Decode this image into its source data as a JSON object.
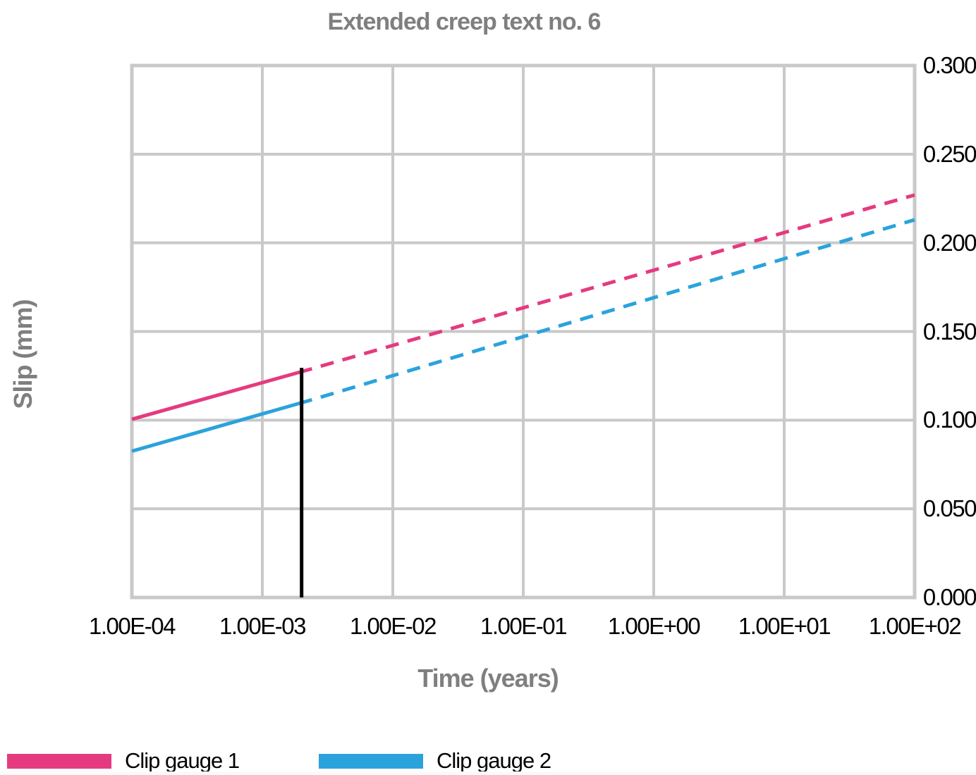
{
  "chart_data": {
    "type": "line",
    "title": "Extended creep text no. 6",
    "xlabel": "Time (years)",
    "ylabel": "Slip (mm)",
    "x_scale": "log",
    "xlim": [
      0.0001,
      100
    ],
    "ylim": [
      0,
      0.3
    ],
    "x_ticks": [
      "1.00E-04",
      "1.00E-03",
      "1.00E-02",
      "1.00E-01",
      "1.00E+00",
      "1.00E+01",
      "1.00E+02"
    ],
    "x_tick_values": [
      0.0001,
      0.001,
      0.01,
      0.1,
      1,
      10,
      100
    ],
    "y_ticks": [
      "0.300",
      "0.250",
      "0.200",
      "0.150",
      "0.100",
      "0.050",
      "0.000"
    ],
    "y_tick_values": [
      0.3,
      0.25,
      0.2,
      0.15,
      0.1,
      0.05,
      0
    ],
    "grid": true,
    "grid_color": "#c9c9c9",
    "label_color": "#7f7f7f",
    "tick_color": "#000000",
    "series": [
      {
        "name": "Clip gauge 1",
        "color": "#e53a80",
        "solid": {
          "x": [
            0.0001,
            0.0024
          ],
          "y": [
            0.1005,
            0.129
          ]
        },
        "dashed": {
          "x": [
            0.0024,
            100
          ],
          "y": [
            0.129,
            0.227
          ]
        }
      },
      {
        "name": "Clip gauge 2",
        "color": "#2aa3dc",
        "solid": {
          "x": [
            0.0001,
            0.0024
          ],
          "y": [
            0.0825,
            0.1115
          ]
        },
        "dashed": {
          "x": [
            0.0024,
            100
          ],
          "y": [
            0.1115,
            0.213
          ]
        }
      }
    ],
    "marker_line": {
      "x": 0.002,
      "y": [
        0,
        0.1295
      ],
      "color": "#000000"
    },
    "legend_position": "bottom-left"
  }
}
